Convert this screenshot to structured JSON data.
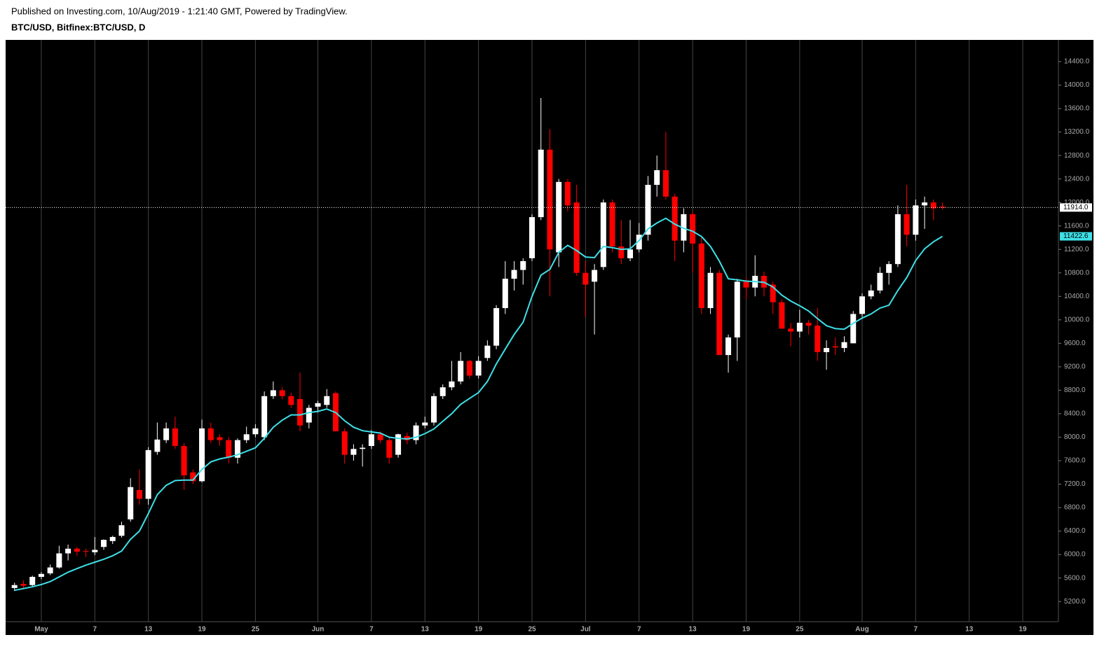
{
  "header": {
    "published": "Published on Investing.com, 10/Aug/2019 - 1:21:40 GMT, Powered by TradingView.",
    "symbol": "BTC/USD, Bitfinex:BTC/USD, D"
  },
  "chart_data": {
    "type": "candlestick",
    "up_color": "#ffffff",
    "down_color": "#ff0000",
    "grid": true,
    "x": [
      "2019-04-28",
      "2019-04-29",
      "2019-04-30",
      "2019-05-01",
      "2019-05-02",
      "2019-05-03",
      "2019-05-04",
      "2019-05-05",
      "2019-05-06",
      "2019-05-07",
      "2019-05-08",
      "2019-05-09",
      "2019-05-10",
      "2019-05-11",
      "2019-05-12",
      "2019-05-13",
      "2019-05-14",
      "2019-05-15",
      "2019-05-16",
      "2019-05-17",
      "2019-05-18",
      "2019-05-19",
      "2019-05-20",
      "2019-05-21",
      "2019-05-22",
      "2019-05-23",
      "2019-05-24",
      "2019-05-25",
      "2019-05-26",
      "2019-05-27",
      "2019-05-28",
      "2019-05-29",
      "2019-05-30",
      "2019-05-31",
      "2019-06-01",
      "2019-06-02",
      "2019-06-03",
      "2019-06-04",
      "2019-06-05",
      "2019-06-06",
      "2019-06-07",
      "2019-06-08",
      "2019-06-09",
      "2019-06-10",
      "2019-06-11",
      "2019-06-12",
      "2019-06-13",
      "2019-06-14",
      "2019-06-15",
      "2019-06-16",
      "2019-06-17",
      "2019-06-18",
      "2019-06-19",
      "2019-06-20",
      "2019-06-21",
      "2019-06-22",
      "2019-06-23",
      "2019-06-24",
      "2019-06-25",
      "2019-06-26",
      "2019-06-27",
      "2019-06-28",
      "2019-06-29",
      "2019-06-30",
      "2019-07-01",
      "2019-07-02",
      "2019-07-03",
      "2019-07-04",
      "2019-07-05",
      "2019-07-06",
      "2019-07-07",
      "2019-07-08",
      "2019-07-09",
      "2019-07-10",
      "2019-07-11",
      "2019-07-12",
      "2019-07-13",
      "2019-07-14",
      "2019-07-15",
      "2019-07-16",
      "2019-07-17",
      "2019-07-18",
      "2019-07-19",
      "2019-07-20",
      "2019-07-21",
      "2019-07-22",
      "2019-07-23",
      "2019-07-24",
      "2019-07-25",
      "2019-07-26",
      "2019-07-27",
      "2019-07-28",
      "2019-07-29",
      "2019-07-30",
      "2019-07-31",
      "2019-08-01",
      "2019-08-02",
      "2019-08-03",
      "2019-08-04",
      "2019-08-05",
      "2019-08-06",
      "2019-08-07",
      "2019-08-08",
      "2019-08-09",
      "2019-08-10"
    ],
    "open": [
      5430,
      5500,
      5480,
      5620,
      5680,
      5780,
      6020,
      6100,
      6060,
      6040,
      6130,
      6230,
      6320,
      6600,
      7100,
      6950,
      7750,
      7950,
      8150,
      7850,
      7400,
      7250,
      8150,
      8000,
      7950,
      7650,
      7950,
      8050,
      8000,
      8700,
      8800,
      8700,
      8650,
      8250,
      8520,
      8550,
      8750,
      8100,
      7700,
      7800,
      7850,
      8050,
      7950,
      7700,
      8020,
      7950,
      8200,
      8250,
      8700,
      8850,
      8950,
      9300,
      9050,
      9350,
      9560,
      10200,
      10700,
      10850,
      11050,
      11750,
      12900,
      11150,
      12350,
      12000,
      10800,
      10650,
      10900,
      12000,
      11250,
      11050,
      11200,
      11450,
      12300,
      12550,
      12100,
      11350,
      11800,
      11300,
      10200,
      10800,
      9400,
      9700,
      10650,
      10550,
      10750,
      10600,
      10300,
      9850,
      9800,
      9950,
      9900,
      9450,
      9550,
      9520,
      9600,
      10100,
      10400,
      10500,
      10800,
      10950,
      11800,
      11450,
      11950,
      12000,
      11930
    ],
    "high": [
      5520,
      5560,
      5640,
      5700,
      5830,
      6150,
      6170,
      6130,
      6100,
      6300,
      6260,
      6320,
      6560,
      7300,
      7450,
      7830,
      8250,
      8250,
      8350,
      7900,
      7450,
      8300,
      8250,
      8050,
      8000,
      7980,
      8180,
      8220,
      8780,
      8950,
      8850,
      8760,
      9100,
      8550,
      8620,
      8820,
      8780,
      8150,
      7880,
      7880,
      8120,
      8100,
      8000,
      8060,
      8080,
      8250,
      8350,
      8750,
      8900,
      9300,
      9450,
      9320,
      9380,
      9650,
      10250,
      11000,
      11000,
      11050,
      11800,
      13780,
      13250,
      12400,
      12400,
      12300,
      11000,
      10950,
      12050,
      12050,
      11700,
      11700,
      11650,
      12450,
      12800,
      13200,
      12150,
      11900,
      11850,
      11400,
      10900,
      10850,
      9750,
      10700,
      10720,
      11100,
      10820,
      10650,
      10350,
      9950,
      10170,
      10000,
      10200,
      9650,
      9700,
      9720,
      10150,
      10450,
      10600,
      10900,
      11000,
      11950,
      12300,
      12050,
      12100,
      12050,
      12000
    ],
    "low": [
      5380,
      5420,
      5460,
      5580,
      5650,
      5760,
      5900,
      5980,
      5960,
      5990,
      6080,
      6180,
      6290,
      6560,
      6850,
      6850,
      7700,
      7900,
      7800,
      7100,
      7200,
      7230,
      7900,
      7850,
      7550,
      7550,
      7900,
      8000,
      7950,
      8650,
      8650,
      8500,
      8100,
      8150,
      8420,
      8500,
      8100,
      7550,
      7600,
      7500,
      7800,
      7900,
      7550,
      7650,
      7880,
      7880,
      8150,
      8200,
      8650,
      8800,
      8900,
      9000,
      9000,
      9300,
      9500,
      10100,
      10500,
      10600,
      11000,
      11700,
      10400,
      10900,
      11850,
      10750,
      10050,
      9750,
      10850,
      11150,
      10950,
      11000,
      11150,
      11350,
      12100,
      12050,
      11000,
      11150,
      10800,
      10100,
      10100,
      9400,
      9100,
      9300,
      10350,
      10400,
      10400,
      10100,
      9850,
      9550,
      9700,
      9750,
      9300,
      9150,
      9400,
      9450,
      9600,
      10050,
      10350,
      10450,
      10600,
      10900,
      11250,
      11350,
      11550,
      11700,
      11880
    ],
    "close": [
      5480,
      5470,
      5620,
      5670,
      5780,
      6020,
      6100,
      6050,
      6050,
      6080,
      6250,
      6300,
      6500,
      7150,
      6950,
      7780,
      7960,
      8150,
      7850,
      7350,
      7250,
      8150,
      7950,
      7950,
      7650,
      7950,
      8050,
      8150,
      8700,
      8800,
      8700,
      8550,
      8200,
      8500,
      8580,
      8700,
      8100,
      7700,
      7800,
      7820,
      8050,
      7950,
      7650,
      8050,
      7950,
      8200,
      8250,
      8700,
      8850,
      8950,
      9300,
      9050,
      9300,
      9560,
      10200,
      10700,
      10850,
      11000,
      11750,
      12900,
      11200,
      12350,
      11950,
      10800,
      10600,
      10850,
      12000,
      11250,
      11050,
      11200,
      11450,
      12300,
      12550,
      12100,
      11350,
      11800,
      11300,
      10200,
      10800,
      9400,
      9700,
      10650,
      10550,
      10750,
      10550,
      10300,
      9850,
      9800,
      9950,
      9900,
      9450,
      9520,
      9530,
      9620,
      10100,
      10400,
      10500,
      10800,
      10950,
      11800,
      11450,
      11950,
      12000,
      11900,
      11914
    ],
    "line": {
      "color": "#3ee0e8",
      "values": [
        5390,
        5420,
        5450,
        5490,
        5540,
        5620,
        5700,
        5760,
        5820,
        5870,
        5920,
        5980,
        6060,
        6260,
        6400,
        6700,
        7020,
        7180,
        7260,
        7270,
        7270,
        7450,
        7580,
        7630,
        7660,
        7700,
        7760,
        7820,
        7980,
        8170,
        8290,
        8380,
        8380,
        8420,
        8440,
        8480,
        8420,
        8280,
        8170,
        8110,
        8090,
        8070,
        8000,
        7980,
        7970,
        8000,
        8060,
        8140,
        8270,
        8400,
        8560,
        8660,
        8760,
        8950,
        9250,
        9500,
        9750,
        9960,
        10400,
        10760,
        10860,
        11150,
        11270,
        11180,
        11070,
        11060,
        11250,
        11230,
        11200,
        11210,
        11350,
        11550,
        11650,
        11730,
        11630,
        11560,
        11510,
        11420,
        11250,
        11000,
        10700,
        10680,
        10660,
        10650,
        10640,
        10560,
        10420,
        10320,
        10240,
        10150,
        10020,
        9900,
        9850,
        9840,
        9940,
        10030,
        10100,
        10200,
        10250,
        10500,
        10720,
        11010,
        11210,
        11330,
        11422.6
      ]
    },
    "last_price": {
      "value": 11914,
      "label": "11914.0"
    },
    "xlim": [
      "2019-04-27",
      "2019-08-23"
    ],
    "xticks": [
      {
        "value": "2019-05-01",
        "label": "May"
      },
      {
        "value": "2019-05-07",
        "label": "7"
      },
      {
        "value": "2019-05-13",
        "label": "13"
      },
      {
        "value": "2019-05-19",
        "label": "19"
      },
      {
        "value": "2019-05-25",
        "label": "25"
      },
      {
        "value": "2019-06-01",
        "label": "Jun"
      },
      {
        "value": "2019-06-07",
        "label": "7"
      },
      {
        "value": "2019-06-13",
        "label": "13"
      },
      {
        "value": "2019-06-19",
        "label": "19"
      },
      {
        "value": "2019-06-25",
        "label": "25"
      },
      {
        "value": "2019-07-01",
        "label": "Jul"
      },
      {
        "value": "2019-07-07",
        "label": "7"
      },
      {
        "value": "2019-07-13",
        "label": "13"
      },
      {
        "value": "2019-07-19",
        "label": "19"
      },
      {
        "value": "2019-07-25",
        "label": "25"
      },
      {
        "value": "2019-08-01",
        "label": "Aug"
      },
      {
        "value": "2019-08-07",
        "label": "7"
      },
      {
        "value": "2019-08-13",
        "label": "13"
      },
      {
        "value": "2019-08-19",
        "label": "19"
      }
    ],
    "ylim": [
      4856,
      14770
    ],
    "yticks": [
      {
        "value": 5200,
        "label": "5200.0"
      },
      {
        "value": 5600,
        "label": "5600.0"
      },
      {
        "value": 6000,
        "label": "6000.0"
      },
      {
        "value": 6400,
        "label": "6400.0"
      },
      {
        "value": 6800,
        "label": "6800.0"
      },
      {
        "value": 7200,
        "label": "7200.0"
      },
      {
        "value": 7600,
        "label": "7600.0"
      },
      {
        "value": 8000,
        "label": "8000.0"
      },
      {
        "value": 8400,
        "label": "8400.0"
      },
      {
        "value": 8800,
        "label": "8800.0"
      },
      {
        "value": 9200,
        "label": "9200.0"
      },
      {
        "value": 9600,
        "label": "9600.0"
      },
      {
        "value": 10000,
        "label": "10000.0"
      },
      {
        "value": 10400,
        "label": "10400.0"
      },
      {
        "value": 10800,
        "label": "10800.0"
      },
      {
        "value": 11200,
        "label": "11200.0"
      },
      {
        "value": 11600,
        "label": "11600.0"
      },
      {
        "value": 12000,
        "label": "12000.0"
      },
      {
        "value": 12400,
        "label": "12400.0"
      },
      {
        "value": 12800,
        "label": "12800.0"
      },
      {
        "value": 13200,
        "label": "13200.0"
      },
      {
        "value": 13600,
        "label": "13600.0"
      },
      {
        "value": 14000,
        "label": "14000.0"
      },
      {
        "value": 14400,
        "label": "14400.0"
      }
    ]
  }
}
